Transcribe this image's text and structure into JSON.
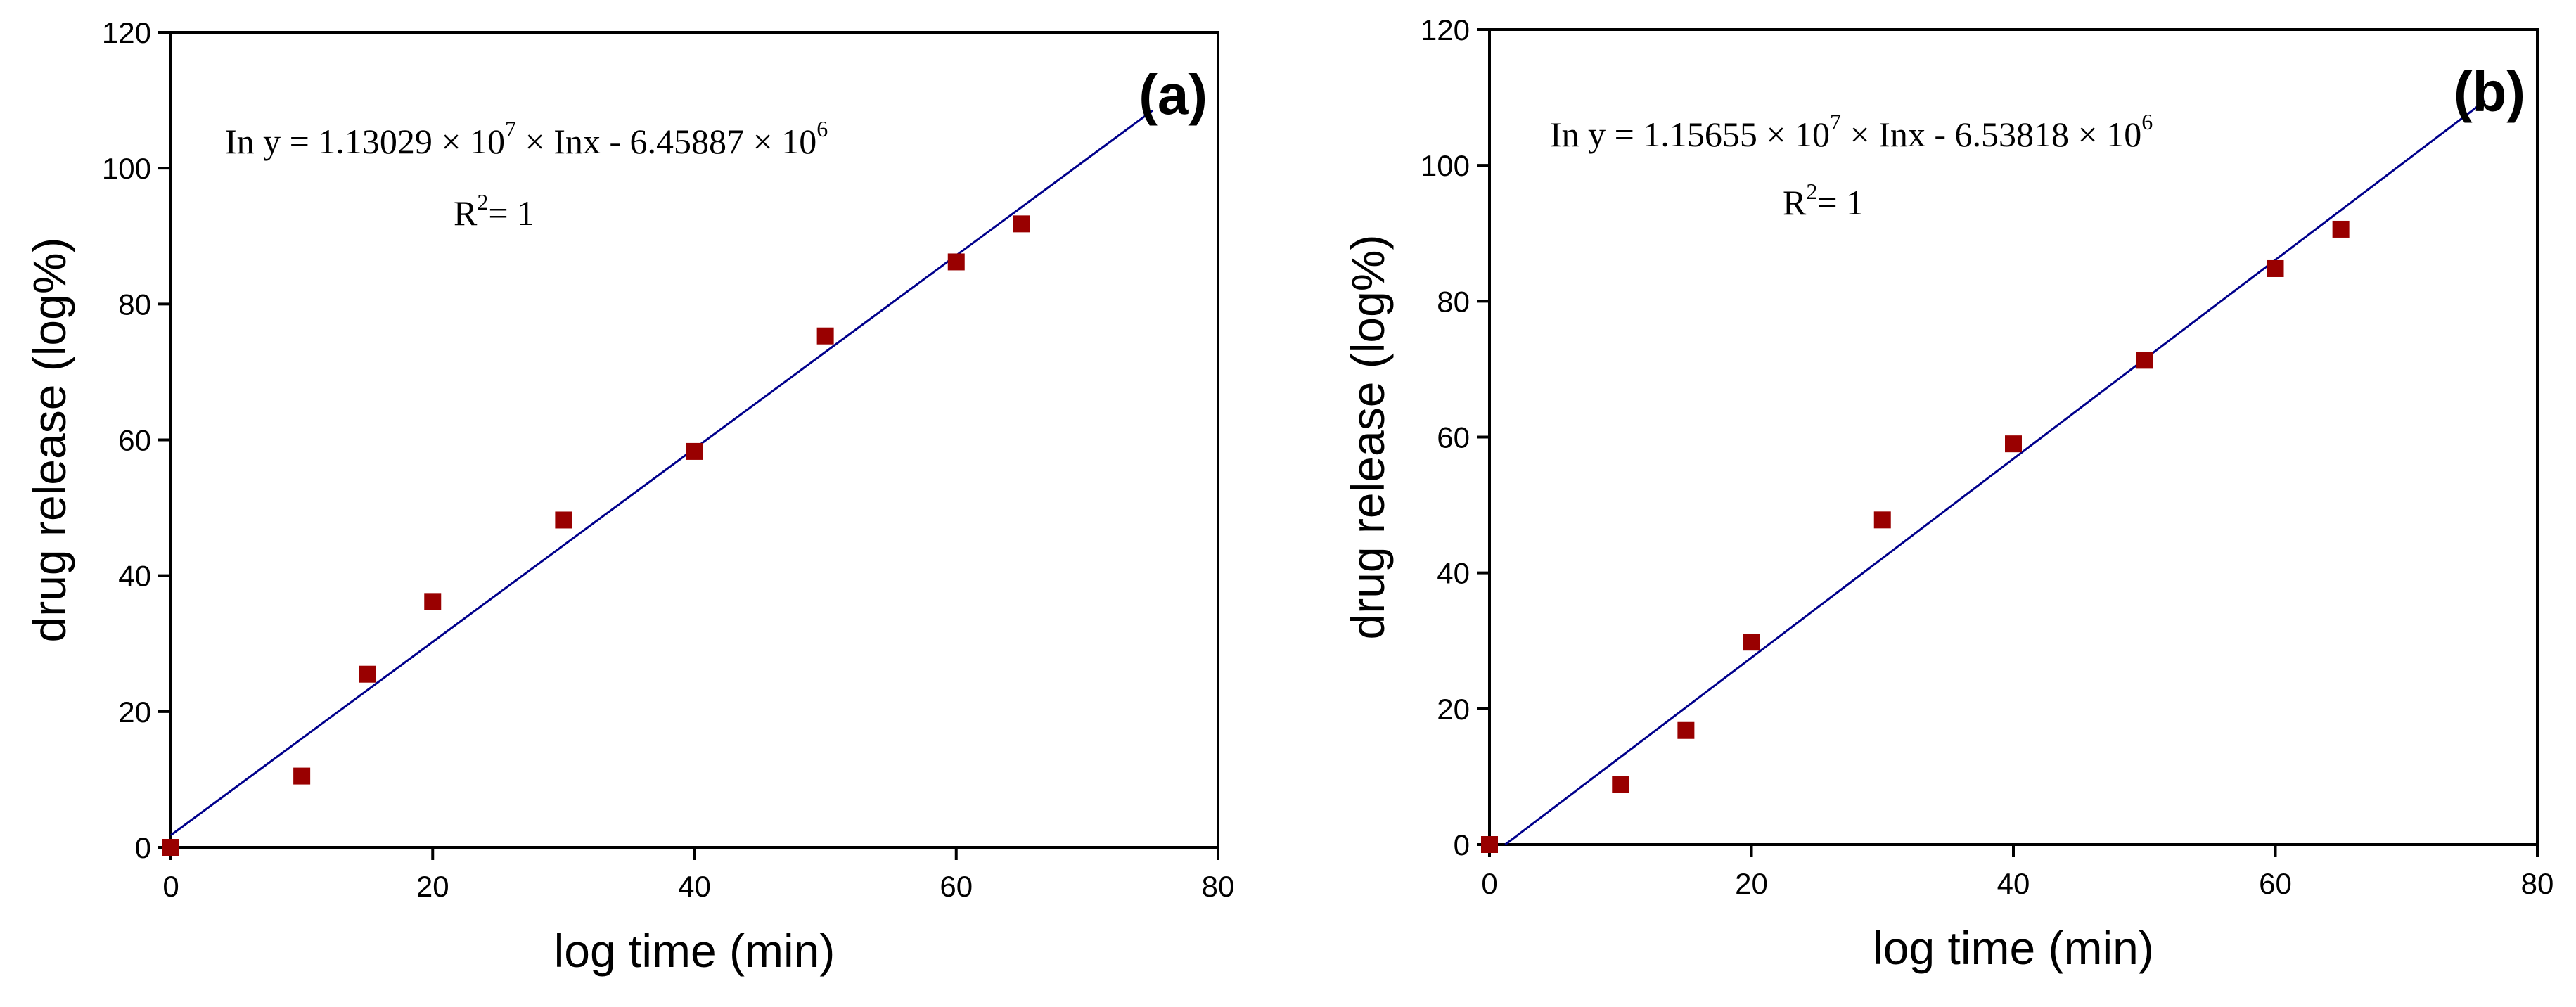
{
  "chart_data": [
    {
      "type": "scatter",
      "panel_label": "(a)",
      "xlabel": "log time (min)",
      "ylabel": "drug release (log%)",
      "xlim": [
        0,
        80
      ],
      "ylim": [
        0,
        120
      ],
      "xticks": [
        0,
        20,
        40,
        60,
        80
      ],
      "yticks": [
        0,
        20,
        40,
        60,
        80,
        100,
        120
      ],
      "points": [
        {
          "x": 0,
          "y": 0
        },
        {
          "x": 10,
          "y": 10.5
        },
        {
          "x": 15,
          "y": 25.5
        },
        {
          "x": 20,
          "y": 36.2
        },
        {
          "x": 30,
          "y": 48.2
        },
        {
          "x": 40,
          "y": 58.3
        },
        {
          "x": 50,
          "y": 75.3
        },
        {
          "x": 60,
          "y": 86.2
        },
        {
          "x": 65,
          "y": 91.8
        }
      ],
      "fit_line": {
        "x1": 0,
        "y1": 1.8,
        "x2": 75,
        "y2": 108.5
      },
      "marker_color": "#990000",
      "line_color": "#00008b",
      "equation": {
        "lead": "In y = 1.13029 × 10",
        "exp1": "7",
        "mid": " × Inx - 6.45887 × 10",
        "exp2": "6",
        "r2_base": "R",
        "r2_exp": "2",
        "r2_tail": "= 1"
      }
    },
    {
      "type": "scatter",
      "panel_label": "(b)",
      "xlabel": "log time (min)",
      "ylabel": "drug release (log%)",
      "xlim": [
        0,
        80
      ],
      "ylim": [
        0,
        120
      ],
      "xticks": [
        0,
        20,
        40,
        60,
        80
      ],
      "yticks": [
        0,
        20,
        40,
        60,
        80,
        100,
        120
      ],
      "points": [
        {
          "x": 0,
          "y": 0
        },
        {
          "x": 10,
          "y": 8.8
        },
        {
          "x": 15,
          "y": 16.8
        },
        {
          "x": 20,
          "y": 29.8
        },
        {
          "x": 30,
          "y": 47.8
        },
        {
          "x": 40,
          "y": 59.0
        },
        {
          "x": 50,
          "y": 71.3
        },
        {
          "x": 60,
          "y": 84.8
        },
        {
          "x": 65,
          "y": 90.6
        }
      ],
      "fit_line": {
        "x1": 1.2,
        "y1": 0,
        "x2": 76,
        "y2": 109.5
      },
      "marker_color": "#990000",
      "line_color": "#00008b",
      "equation": {
        "lead": "In y = 1.15655 × 10",
        "exp1": "7",
        "mid": " × Inx - 6.53818 × 10",
        "exp2": "6",
        "r2_base": "R",
        "r2_exp": "2",
        "r2_tail": "= 1"
      }
    }
  ]
}
